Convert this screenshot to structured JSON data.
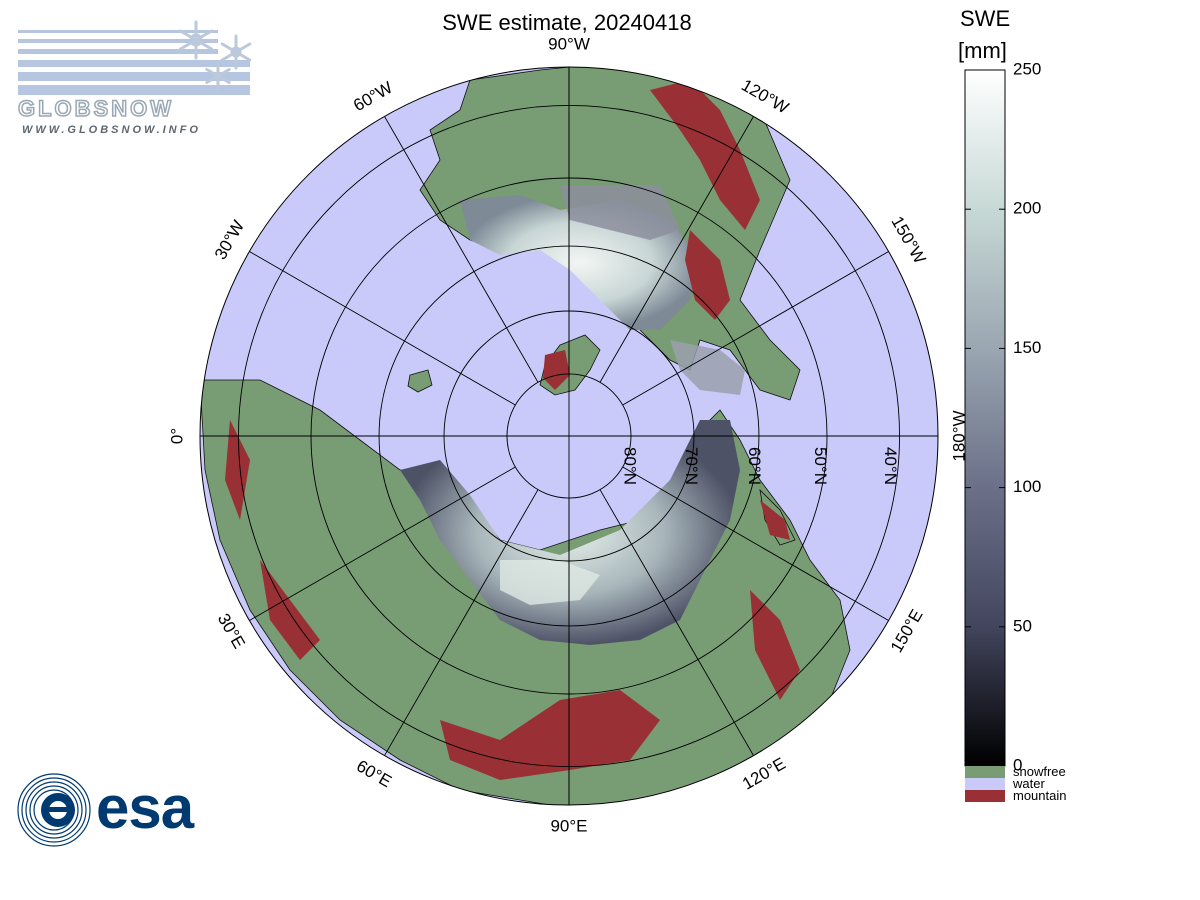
{
  "map": {
    "title": "SWE estimate, 20240418",
    "projection": "polar stereographic, north pole",
    "longitude_labels": [
      {
        "text": "90°W",
        "lon": -90
      },
      {
        "text": "60°W",
        "lon": -60
      },
      {
        "text": "30°W",
        "lon": -30
      },
      {
        "text": "0°",
        "lon": 0
      },
      {
        "text": "30°E",
        "lon": 30
      },
      {
        "text": "60°E",
        "lon": 60
      },
      {
        "text": "90°E",
        "lon": 90
      },
      {
        "text": "120°E",
        "lon": 120
      },
      {
        "text": "150°E",
        "lon": 150
      },
      {
        "text": "180°W",
        "lon": 180
      },
      {
        "text": "150°W",
        "lon": -150
      },
      {
        "text": "120°W",
        "lon": -120
      }
    ],
    "latitude_labels": [
      {
        "text": "40°N",
        "lat": 40
      },
      {
        "text": "50°N",
        "lat": 50
      },
      {
        "text": "60°N",
        "lat": 60
      },
      {
        "text": "70°N",
        "lat": 70
      },
      {
        "text": "80°N",
        "lat": 80
      }
    ],
    "graticule_latitudes": [
      40,
      50,
      60,
      70,
      80
    ],
    "graticule_longitudes": [
      0,
      30,
      60,
      90,
      120,
      150,
      180,
      210,
      240,
      270,
      300,
      330
    ],
    "colors": {
      "water": "#c9c9fa",
      "snowfree": "#789c74",
      "mountain": "#993035",
      "graticule": "#000000",
      "coast": "#111111"
    }
  },
  "colorbar": {
    "title_line1": "SWE",
    "title_line2": "[mm]",
    "min": 0,
    "max": 250,
    "ticks": [
      {
        "value": 0,
        "label": "0"
      },
      {
        "value": 50,
        "label": "50"
      },
      {
        "value": 100,
        "label": "100"
      },
      {
        "value": 150,
        "label": "150"
      },
      {
        "value": 200,
        "label": "200"
      },
      {
        "value": 250,
        "label": "250"
      }
    ],
    "gradient_stops": [
      "#000000",
      "#42455d",
      "#6b7088",
      "#9aa6b1",
      "#c7d9d6",
      "#ffffff"
    ],
    "categories": [
      {
        "label": "snowfree",
        "color": "#789c74"
      },
      {
        "label": "water",
        "color": "#c9c9fa"
      },
      {
        "label": "mountain",
        "color": "#993035"
      }
    ]
  },
  "logos": {
    "globsnow_word": "GLOBSNOW",
    "globsnow_url": "WWW.GLOBSNOW.INFO",
    "esa_word": "esa"
  }
}
